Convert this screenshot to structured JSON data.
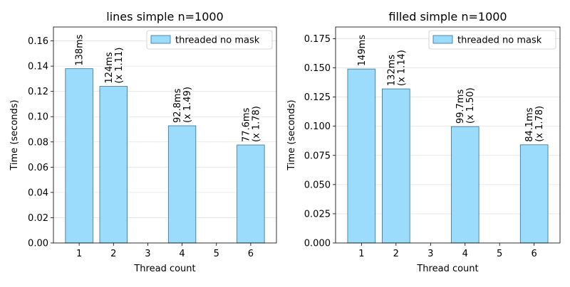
{
  "chart_data": [
    {
      "type": "bar",
      "title": "lines simple n=1000",
      "xlabel": "Thread count",
      "ylabel": "Time (seconds)",
      "x_ticks": [
        "1",
        "2",
        "3",
        "4",
        "5",
        "6"
      ],
      "y_ticks": [
        "0.00",
        "0.02",
        "0.04",
        "0.06",
        "0.08",
        "0.10",
        "0.12",
        "0.14",
        "0.16"
      ],
      "ylim": [
        0,
        0.171
      ],
      "series": [
        {
          "name": "threaded no mask",
          "points": [
            {
              "x": 1,
              "y": 0.138,
              "label": [
                "138ms"
              ]
            },
            {
              "x": 2,
              "y": 0.124,
              "label": [
                "124ms",
                "(x 1.11)"
              ]
            },
            {
              "x": 4,
              "y": 0.0928,
              "label": [
                "92.8ms",
                "(x 1.49)"
              ]
            },
            {
              "x": 6,
              "y": 0.0776,
              "label": [
                "77.6ms",
                "(x 1.78)"
              ]
            }
          ]
        }
      ],
      "legend_position": "top-right",
      "grid": "horizontal"
    },
    {
      "type": "bar",
      "title": "filled simple n=1000",
      "xlabel": "Thread count",
      "ylabel": "Time (seconds)",
      "x_ticks": [
        "1",
        "2",
        "3",
        "4",
        "5",
        "6"
      ],
      "y_ticks": [
        "0.000",
        "0.025",
        "0.050",
        "0.075",
        "0.100",
        "0.125",
        "0.150",
        "0.175"
      ],
      "ylim": [
        0,
        0.185
      ],
      "series": [
        {
          "name": "threaded no mask",
          "points": [
            {
              "x": 1,
              "y": 0.149,
              "label": [
                "149ms"
              ]
            },
            {
              "x": 2,
              "y": 0.132,
              "label": [
                "132ms",
                "(x 1.14)"
              ]
            },
            {
              "x": 4,
              "y": 0.0997,
              "label": [
                "99.7ms",
                "(x 1.50)"
              ]
            },
            {
              "x": 6,
              "y": 0.0841,
              "label": [
                "84.1ms",
                "(x 1.78)"
              ]
            }
          ]
        }
      ],
      "legend_position": "top-right",
      "grid": "horizontal"
    }
  ],
  "colors": {
    "bar_fill": "#9bdcfd",
    "bar_edge": "#3a6f8c",
    "grid": "#e3e3e3",
    "axis": "#000000"
  }
}
